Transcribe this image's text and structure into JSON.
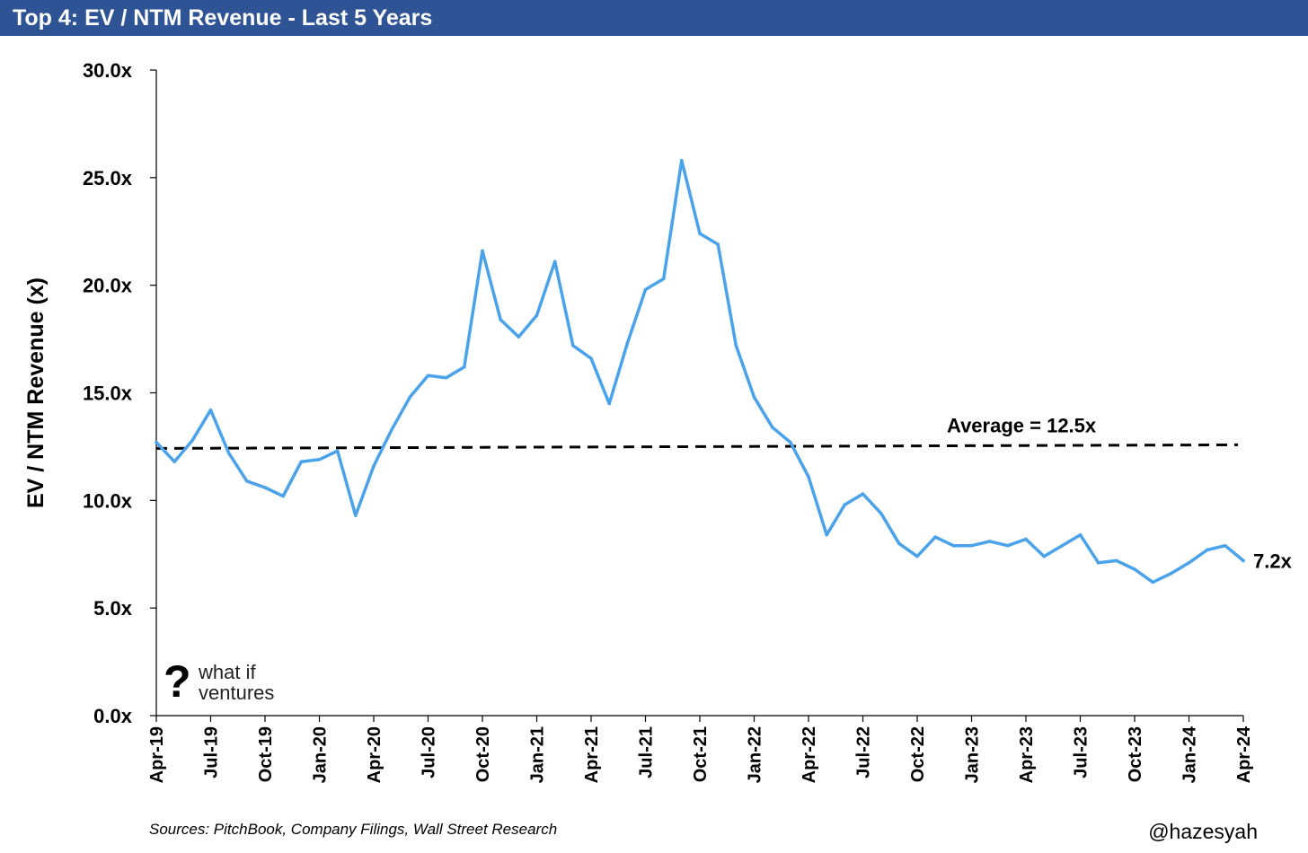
{
  "header": {
    "title": "Top 4: EV / NTM Revenue - Last 5 Years"
  },
  "footer": {
    "source": "Sources: PitchBook, Company Filings, Wall Street Research",
    "handle": "@hazesyah"
  },
  "logo": {
    "line1": "what if",
    "line2": "ventures",
    "mark": "?"
  },
  "colors": {
    "title_bar": "#2F5496",
    "series": "#4AA3EA",
    "average_line": "#000000"
  },
  "chart_data": {
    "type": "line",
    "ylabel": "EV / NTM Revenue (x)",
    "xlabel": "",
    "ylim": [
      0,
      30
    ],
    "y_ticks": [
      "0.0x",
      "5.0x",
      "10.0x",
      "15.0x",
      "20.0x",
      "25.0x",
      "30.0x"
    ],
    "x_ticks": [
      "Apr-19",
      "Jul-19",
      "Oct-19",
      "Jan-20",
      "Apr-20",
      "Jul-20",
      "Oct-20",
      "Jan-21",
      "Apr-21",
      "Jul-21",
      "Oct-21",
      "Jan-22",
      "Apr-22",
      "Jul-22",
      "Oct-22",
      "Jan-23",
      "Apr-23",
      "Jul-23",
      "Oct-23",
      "Jan-24",
      "Apr-24"
    ],
    "grid": false,
    "series": [
      {
        "x": [
          "2019-04",
          "2019-05",
          "2019-06",
          "2019-07",
          "2019-08",
          "2019-09",
          "2019-10",
          "2019-11",
          "2019-12",
          "2020-01",
          "2020-02",
          "2020-03",
          "2020-04",
          "2020-05",
          "2020-06",
          "2020-07",
          "2020-08",
          "2020-09",
          "2020-10",
          "2020-11",
          "2020-12",
          "2021-01",
          "2021-02",
          "2021-03",
          "2021-04",
          "2021-05",
          "2021-06",
          "2021-07",
          "2021-08",
          "2021-09",
          "2021-10",
          "2021-11",
          "2021-12",
          "2022-01",
          "2022-02",
          "2022-03",
          "2022-04",
          "2022-05",
          "2022-06",
          "2022-07",
          "2022-08",
          "2022-09",
          "2022-10",
          "2022-11",
          "2022-12",
          "2023-01",
          "2023-02",
          "2023-03",
          "2023-04",
          "2023-05",
          "2023-06",
          "2023-07",
          "2023-08",
          "2023-09",
          "2023-10",
          "2023-11",
          "2023-12",
          "2024-01",
          "2024-02",
          "2024-03",
          "2024-04"
        ],
        "values": [
          12.7,
          11.8,
          12.8,
          14.2,
          12.2,
          10.9,
          10.6,
          10.2,
          11.8,
          11.9,
          12.3,
          9.3,
          11.6,
          13.3,
          14.8,
          15.8,
          15.7,
          16.2,
          21.6,
          18.4,
          17.6,
          18.6,
          21.1,
          17.2,
          16.6,
          14.5,
          17.3,
          19.8,
          20.3,
          25.8,
          22.4,
          21.9,
          17.2,
          14.8,
          13.4,
          12.7,
          11.1,
          8.4,
          9.8,
          10.3,
          9.4,
          8.0,
          7.4,
          8.3,
          7.9,
          7.9,
          8.1,
          7.9,
          8.2,
          7.4,
          7.9,
          8.4,
          7.1,
          7.2,
          6.8,
          6.2,
          6.6,
          7.1,
          7.7,
          7.9,
          7.2
        ]
      }
    ],
    "average": {
      "value": 12.5,
      "label": "Average = 12.5x"
    },
    "end_label": "7.2x"
  }
}
